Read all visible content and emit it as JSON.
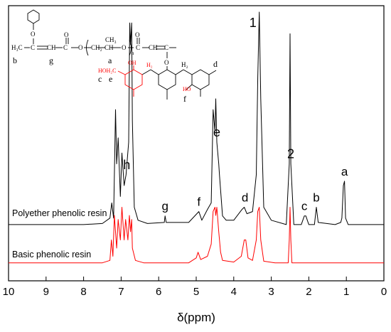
{
  "chart_data": {
    "type": "line",
    "title": "",
    "xlabel": "δ(ppm)",
    "ylabel": "",
    "xlim": [
      10,
      0
    ],
    "x_reversed": true,
    "x_ticks": [
      "10",
      "9",
      "8",
      "7",
      "6",
      "5",
      "4",
      "3",
      "2",
      "1",
      "0"
    ],
    "grid": false,
    "series": [
      {
        "name": "Polyether phenolic resin",
        "color": "#000000",
        "points": [
          [
            10.0,
            0.02
          ],
          [
            9.0,
            0.02
          ],
          [
            8.0,
            0.02
          ],
          [
            7.5,
            0.025
          ],
          [
            7.3,
            0.05
          ],
          [
            7.25,
            0.12
          ],
          [
            7.2,
            0.05
          ],
          [
            7.15,
            0.55
          ],
          [
            7.12,
            0.3
          ],
          [
            7.08,
            0.42
          ],
          [
            7.02,
            0.15
          ],
          [
            6.98,
            0.35
          ],
          [
            6.92,
            0.2
          ],
          [
            6.87,
            0.25
          ],
          [
            6.8,
            0.4
          ],
          [
            6.77,
            0.95
          ],
          [
            6.75,
            0.85
          ],
          [
            6.72,
            0.95
          ],
          [
            6.7,
            0.5
          ],
          [
            6.65,
            0.1
          ],
          [
            6.55,
            0.04
          ],
          [
            6.3,
            0.025
          ],
          [
            5.85,
            0.03
          ],
          [
            5.83,
            0.06
          ],
          [
            5.8,
            0.03
          ],
          [
            5.2,
            0.03
          ],
          [
            4.93,
            0.08
          ],
          [
            4.85,
            0.04
          ],
          [
            4.7,
            0.09
          ],
          [
            4.6,
            0.12
          ],
          [
            4.55,
            0.55
          ],
          [
            4.5,
            0.45
          ],
          [
            4.48,
            0.6
          ],
          [
            4.45,
            0.4
          ],
          [
            4.4,
            0.3
          ],
          [
            4.38,
            0.25
          ],
          [
            4.3,
            0.06
          ],
          [
            4.2,
            0.04
          ],
          [
            4.0,
            0.04
          ],
          [
            3.78,
            0.09
          ],
          [
            3.72,
            0.1
          ],
          [
            3.65,
            0.07
          ],
          [
            3.5,
            0.08
          ],
          [
            3.4,
            0.25
          ],
          [
            3.36,
            0.7
          ],
          [
            3.32,
            1.0
          ],
          [
            3.28,
            0.6
          ],
          [
            3.2,
            0.1
          ],
          [
            3.0,
            0.04
          ],
          [
            2.6,
            0.02
          ],
          [
            2.52,
            0.3
          ],
          [
            2.5,
            0.9
          ],
          [
            2.48,
            0.3
          ],
          [
            2.4,
            0.02
          ],
          [
            2.2,
            0.02
          ],
          [
            2.12,
            0.06
          ],
          [
            2.08,
            0.06
          ],
          [
            2.0,
            0.02
          ],
          [
            1.85,
            0.02
          ],
          [
            1.8,
            0.1
          ],
          [
            1.75,
            0.03
          ],
          [
            1.3,
            0.02
          ],
          [
            1.15,
            0.03
          ],
          [
            1.12,
            0.05
          ],
          [
            1.08,
            0.2
          ],
          [
            1.05,
            0.22
          ],
          [
            1.02,
            0.05
          ],
          [
            0.95,
            0.02
          ],
          [
            0.5,
            0.02
          ],
          [
            0.0,
            0.02
          ]
        ]
      },
      {
        "name": "Basic phenolic resin",
        "color": "#ff0000",
        "points": [
          [
            10.0,
            0.02
          ],
          [
            8.0,
            0.02
          ],
          [
            7.5,
            0.02
          ],
          [
            7.3,
            0.05
          ],
          [
            7.26,
            0.3
          ],
          [
            7.22,
            0.1
          ],
          [
            7.18,
            0.6
          ],
          [
            7.12,
            0.2
          ],
          [
            7.08,
            0.55
          ],
          [
            7.02,
            0.3
          ],
          [
            6.98,
            0.7
          ],
          [
            6.92,
            0.3
          ],
          [
            6.88,
            0.55
          ],
          [
            6.82,
            0.3
          ],
          [
            6.78,
            0.6
          ],
          [
            6.75,
            0.4
          ],
          [
            6.72,
            0.55
          ],
          [
            6.7,
            0.2
          ],
          [
            6.62,
            0.05
          ],
          [
            6.4,
            0.02
          ],
          [
            5.2,
            0.02
          ],
          [
            5.0,
            0.08
          ],
          [
            4.95,
            0.15
          ],
          [
            4.88,
            0.06
          ],
          [
            4.7,
            0.1
          ],
          [
            4.6,
            0.25
          ],
          [
            4.55,
            0.65
          ],
          [
            4.5,
            0.7
          ],
          [
            4.48,
            0.6
          ],
          [
            4.45,
            0.7
          ],
          [
            4.4,
            0.4
          ],
          [
            4.35,
            0.15
          ],
          [
            4.3,
            0.05
          ],
          [
            4.0,
            0.03
          ],
          [
            3.8,
            0.1
          ],
          [
            3.72,
            0.3
          ],
          [
            3.68,
            0.3
          ],
          [
            3.62,
            0.08
          ],
          [
            3.5,
            0.05
          ],
          [
            3.4,
            0.3
          ],
          [
            3.36,
            0.65
          ],
          [
            3.32,
            0.7
          ],
          [
            3.28,
            0.3
          ],
          [
            3.2,
            0.04
          ],
          [
            2.9,
            0.02
          ],
          [
            2.55,
            0.02
          ],
          [
            2.52,
            0.3
          ],
          [
            2.5,
            0.7
          ],
          [
            2.48,
            0.3
          ],
          [
            2.45,
            0.02
          ],
          [
            2.0,
            0.02
          ],
          [
            1.0,
            0.02
          ],
          [
            0.0,
            0.02
          ]
        ]
      }
    ],
    "annotations": [
      {
        "text": "1",
        "x": 3.32
      },
      {
        "text": "2",
        "x": 2.48
      },
      {
        "text": "h",
        "x": 6.85
      },
      {
        "text": "e",
        "x": 4.45
      },
      {
        "text": "g",
        "x": 5.83
      },
      {
        "text": "f",
        "x": 4.93
      },
      {
        "text": "d",
        "x": 3.7
      },
      {
        "text": "c",
        "x": 2.12
      },
      {
        "text": "b",
        "x": 1.8
      },
      {
        "text": "a",
        "x": 1.05
      }
    ],
    "structure_labels": {
      "h3c": "H₃C",
      "ch": "CH",
      "c": "C",
      "o": "O",
      "o_top": "O",
      "ch2": "CH₂",
      "ch3": "CH₃",
      "n": "n",
      "h2_red": "H₂",
      "h2_black": "H₂",
      "hoh2c": "HOH₂C",
      "oh": "OH",
      "ho": "HO",
      "b": "b",
      "g": "g",
      "a": "a",
      "c_label": "c",
      "e": "e",
      "f": "f",
      "d": "d"
    }
  }
}
